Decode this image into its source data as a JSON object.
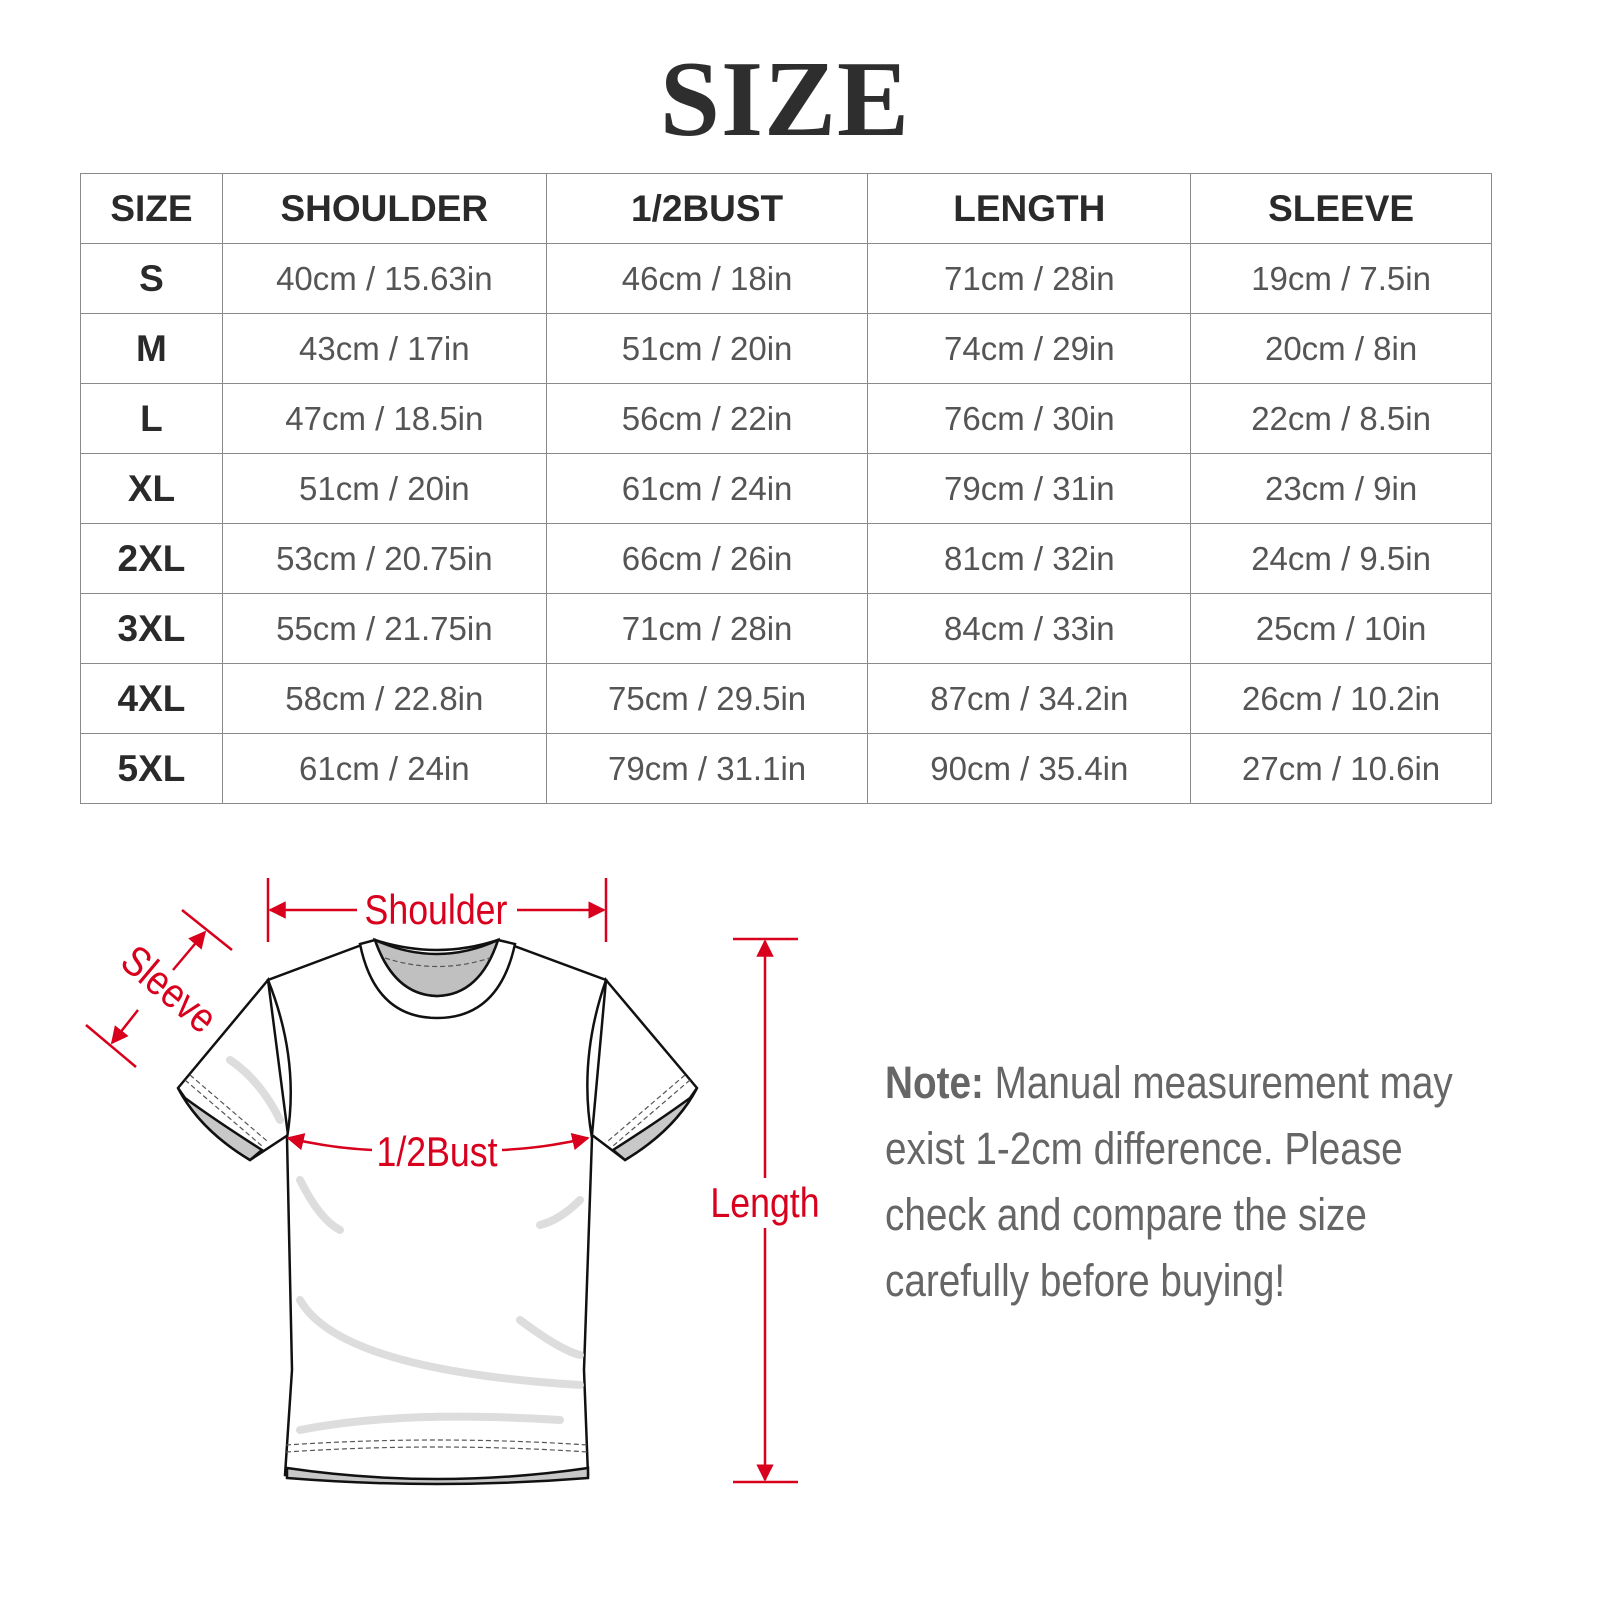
{
  "title": "SIZE",
  "table": {
    "headers": [
      "SIZE",
      "SHOULDER",
      "1/2BUST",
      "LENGTH",
      "SLEEVE"
    ],
    "rows": [
      [
        "S",
        "40cm / 15.63in",
        "46cm / 18in",
        "71cm / 28in",
        "19cm / 7.5in"
      ],
      [
        "M",
        "43cm / 17in",
        "51cm / 20in",
        "74cm / 29in",
        "20cm / 8in"
      ],
      [
        "L",
        "47cm / 18.5in",
        "56cm / 22in",
        "76cm / 30in",
        "22cm / 8.5in"
      ],
      [
        "XL",
        "51cm / 20in",
        "61cm / 24in",
        "79cm / 31in",
        "23cm / 9in"
      ],
      [
        "2XL",
        "53cm / 20.75in",
        "66cm / 26in",
        "81cm / 32in",
        "24cm / 9.5in"
      ],
      [
        "3XL",
        "55cm / 21.75in",
        "71cm / 28in",
        "84cm / 33in",
        "25cm / 10in"
      ],
      [
        "4XL",
        "58cm / 22.8in",
        "75cm / 29.5in",
        "87cm / 34.2in",
        "26cm / 10.2in"
      ],
      [
        "5XL",
        "61cm / 24in",
        "79cm / 31.1in",
        "90cm / 35.4in",
        "27cm / 10.6in"
      ]
    ]
  },
  "diagram": {
    "labels": {
      "shoulder": "Shoulder",
      "sleeve": "Sleeve",
      "bust": "1/2Bust",
      "length": "Length"
    },
    "accent_color": "#d8001c"
  },
  "note": {
    "label": "Note:",
    "text": " Manual measurement may exist 1-2cm difference. Please check and compare the size carefully before buying!"
  }
}
